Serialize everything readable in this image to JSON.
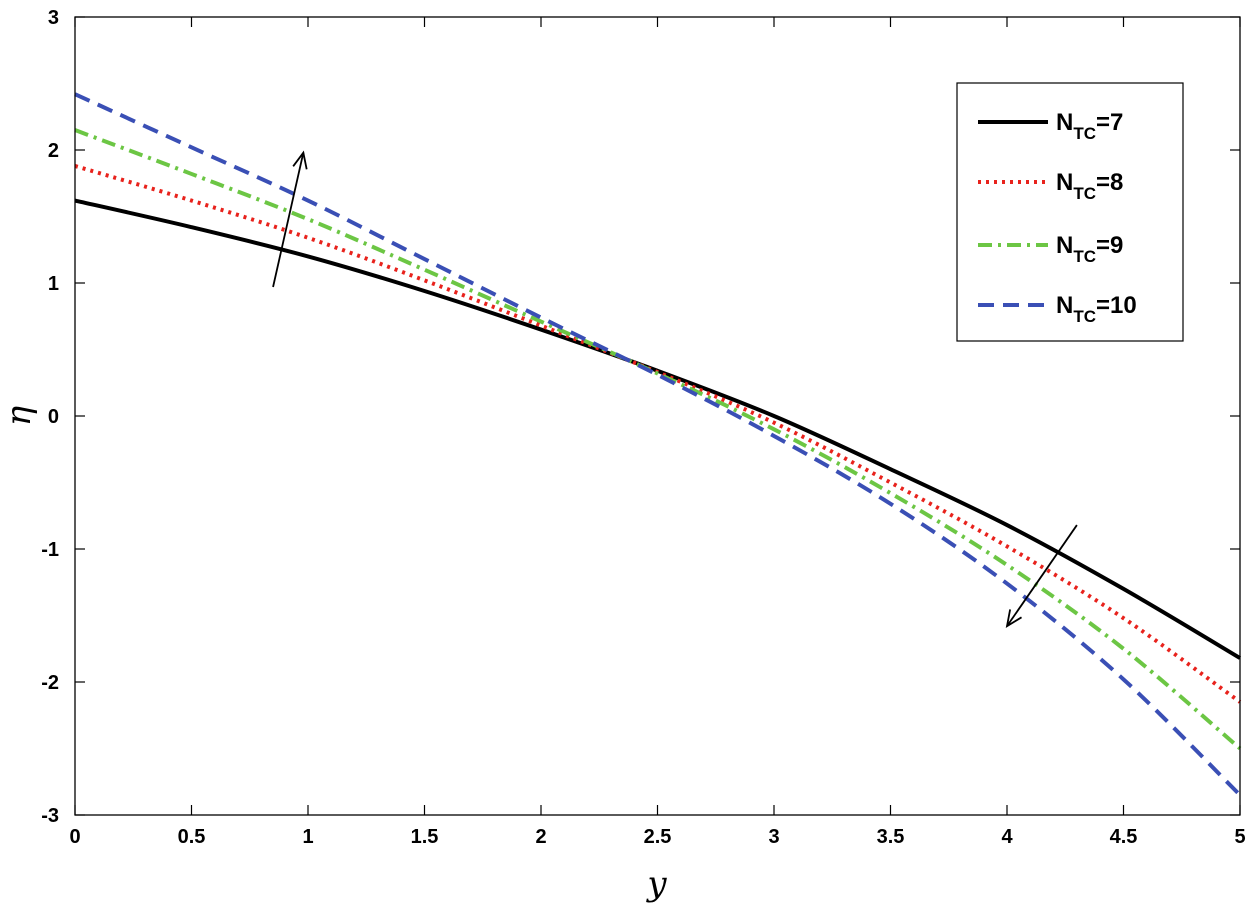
{
  "chart_data": {
    "type": "line",
    "xlabel": "y",
    "ylabel": "η",
    "xlim": [
      0,
      5
    ],
    "ylim": [
      -3,
      3
    ],
    "x_ticks": [
      "0",
      "0.5",
      "1",
      "1.5",
      "2",
      "2.5",
      "3",
      "3.5",
      "4",
      "4.5",
      "5"
    ],
    "y_ticks": [
      "3",
      "2",
      "1",
      "0",
      "-1",
      "-2",
      "-3"
    ],
    "grid": false,
    "legend_position": "top-right",
    "x": [
      0,
      0.5,
      1,
      1.5,
      2,
      2.5,
      3,
      3.5,
      4,
      4.5,
      5
    ],
    "series": [
      {
        "label_main": "N",
        "label_sub": "TC",
        "label_value": "=7",
        "color": "#000000",
        "style": "solid",
        "values": [
          1.62,
          1.42,
          1.2,
          0.94,
          0.65,
          0.34,
          0.0,
          -0.4,
          -0.82,
          -1.3,
          -1.82
        ]
      },
      {
        "label_main": "N",
        "label_sub": "TC",
        "label_value": "=8",
        "color": "#e8221c",
        "style": "dotted",
        "values": [
          1.88,
          1.62,
          1.34,
          1.02,
          0.68,
          0.33,
          -0.05,
          -0.5,
          -0.98,
          -1.52,
          -2.15
        ]
      },
      {
        "label_main": "N",
        "label_sub": "TC",
        "label_value": "=9",
        "color": "#6cc644",
        "style": "dashdot",
        "values": [
          2.15,
          1.82,
          1.48,
          1.1,
          0.71,
          0.32,
          -0.1,
          -0.58,
          -1.12,
          -1.75,
          -2.5
        ]
      },
      {
        "label_main": "N",
        "label_sub": "TC",
        "label_value": "=10",
        "color": "#3a4fb5",
        "style": "dashed",
        "values": [
          2.42,
          2.02,
          1.62,
          1.18,
          0.74,
          0.31,
          -0.15,
          -0.66,
          -1.26,
          -1.98,
          -2.85
        ]
      }
    ],
    "annotations": [
      {
        "type": "arrow",
        "from": [
          0.85,
          0.97
        ],
        "to": [
          0.98,
          1.98
        ]
      },
      {
        "type": "arrow",
        "from": [
          4.3,
          -0.82
        ],
        "to": [
          4.0,
          -1.58
        ]
      }
    ]
  }
}
